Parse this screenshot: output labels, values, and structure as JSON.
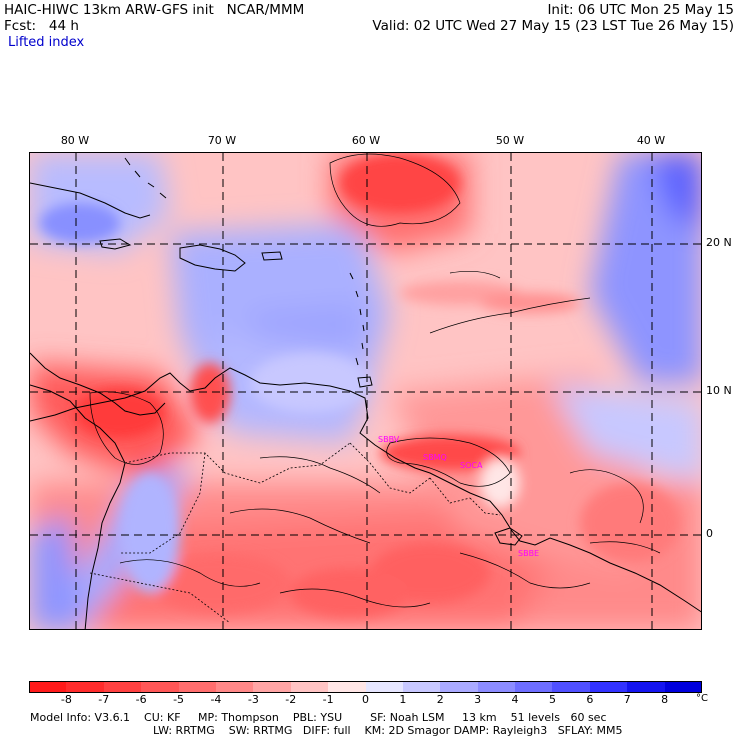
{
  "header": {
    "line1_left": "HAIC-HIWC 13km ARW-GFS init   NCAR/MMM",
    "line1_right": "Init: 06 UTC Mon 25 May 15",
    "line2_left": "Fcst:   44 h",
    "line2_right": "Valid: 02 UTC Wed 27 May 15 (23 LST Tue 26 May 15)",
    "field": "Lifted index"
  },
  "map": {
    "longitude_labels": [
      "80 W",
      "70 W",
      "60 W",
      "50 W",
      "40 W"
    ],
    "latitude_labels": [
      "20 N",
      "10 N",
      "0"
    ],
    "station_labels": [
      "SBBV",
      "SBMQ",
      "SOCA",
      "SBBE"
    ],
    "colors": {
      "border": "#000000",
      "grid": "#000000",
      "station": "#ff00ff"
    }
  },
  "colorbar": {
    "ticks": [
      "-8",
      "-7",
      "-6",
      "-5",
      "-4",
      "-3",
      "-2",
      "-1",
      "0",
      "1",
      "2",
      "3",
      "4",
      "5",
      "6",
      "7",
      "8"
    ],
    "unit": "°C",
    "colors": [
      "#ff1a1a",
      "#ff2c2c",
      "#ff4141",
      "#ff5757",
      "#ff6e6e",
      "#ff8888",
      "#ffa5a5",
      "#ffc4c4",
      "#ffe6e6",
      "#e6e6ff",
      "#c8c8ff",
      "#aaaaff",
      "#8c8cff",
      "#6e6eff",
      "#5050ff",
      "#3232ff",
      "#1414f0",
      "#0000dd"
    ]
  },
  "footer": {
    "line1": "Model Info: V3.6.1    CU: KF     MP: Thompson    PBL: YSU        SF: Noah LSM     13 km    51 levels   60 sec",
    "line2": "LW: RRTMG    SW: RRTMG   DIFF: full    KM: 2D Smagor DAMP: Rayleigh3   SFLAY: MM5"
  }
}
